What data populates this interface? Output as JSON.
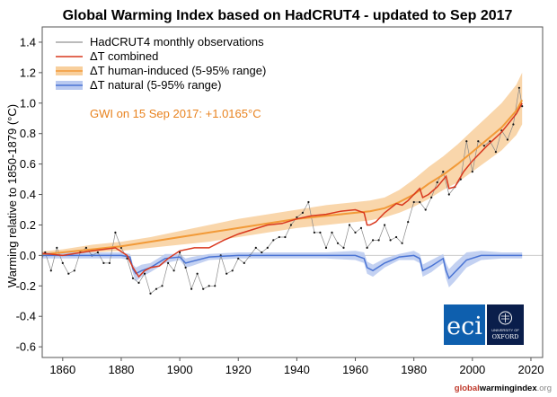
{
  "chart_data": {
    "type": "line",
    "title": "Global Warming Index based on HadCRUT4 - updated to Sep 2017",
    "xlabel": "",
    "ylabel": "Warming relative to 1850-1879 (°C)",
    "xlim": [
      1853,
      2024
    ],
    "ylim": [
      -0.67,
      1.5
    ],
    "x_ticks": [
      1860,
      1880,
      1900,
      1920,
      1940,
      1960,
      1980,
      2000,
      2020
    ],
    "y_ticks": [
      -0.6,
      -0.4,
      -0.2,
      0.0,
      0.2,
      0.4,
      0.6,
      0.8,
      1.0,
      1.2,
      1.4
    ],
    "y_tick_labels": [
      "-0.6",
      "-0.4",
      "-0.2",
      "0.0",
      "0.2",
      "0.4",
      "0.6",
      "0.8",
      "1.0",
      "1.2",
      "1.4"
    ],
    "grid": false,
    "legend_position": "top-left",
    "annotation": "GWI on 15 Sep 2017: +1.0165°C",
    "colors": {
      "observations": "#111111",
      "combined": "#d9381e",
      "human": "#f29a38",
      "human_band": "#f8cf9c",
      "natural": "#4a74d4",
      "natural_band": "#b9c9f0",
      "annotation": "#e8821e"
    },
    "series": [
      {
        "name": "HadCRUT4 monthly observations",
        "style": "grey line with black dots",
        "x": [
          1850,
          1852,
          1854,
          1856,
          1858,
          1860,
          1862,
          1864,
          1866,
          1868,
          1870,
          1872,
          1874,
          1876,
          1878,
          1880,
          1882,
          1884,
          1886,
          1888,
          1890,
          1892,
          1894,
          1896,
          1898,
          1900,
          1902,
          1904,
          1906,
          1908,
          1910,
          1912,
          1914,
          1916,
          1918,
          1920,
          1922,
          1924,
          1926,
          1928,
          1930,
          1932,
          1934,
          1936,
          1938,
          1940,
          1942,
          1944,
          1946,
          1948,
          1950,
          1952,
          1954,
          1956,
          1958,
          1960,
          1962,
          1964,
          1966,
          1968,
          1970,
          1972,
          1974,
          1976,
          1978,
          1980,
          1982,
          1984,
          1986,
          1988,
          1990,
          1992,
          1994,
          1996,
          1998,
          2000,
          2002,
          2004,
          2006,
          2008,
          2010,
          2012,
          2014,
          2016,
          2017
        ],
        "y": [
          0.0,
          -0.05,
          0.02,
          -0.1,
          0.05,
          -0.05,
          -0.12,
          -0.1,
          0.02,
          0.05,
          0.0,
          0.02,
          -0.05,
          -0.05,
          0.15,
          0.05,
          -0.02,
          -0.15,
          -0.18,
          -0.12,
          -0.25,
          -0.22,
          -0.2,
          -0.05,
          -0.1,
          0.02,
          -0.08,
          -0.22,
          -0.12,
          -0.22,
          -0.2,
          -0.2,
          0.0,
          -0.12,
          -0.1,
          -0.02,
          -0.05,
          0.0,
          0.05,
          0.02,
          0.05,
          0.1,
          0.12,
          0.12,
          0.2,
          0.25,
          0.28,
          0.35,
          0.15,
          0.15,
          0.05,
          0.15,
          0.08,
          0.05,
          0.2,
          0.15,
          0.18,
          0.05,
          0.1,
          0.1,
          0.2,
          0.1,
          0.12,
          0.08,
          0.22,
          0.35,
          0.35,
          0.3,
          0.38,
          0.48,
          0.55,
          0.4,
          0.45,
          0.5,
          0.75,
          0.55,
          0.75,
          0.72,
          0.75,
          0.68,
          0.82,
          0.76,
          0.86,
          1.1,
          0.98
        ]
      },
      {
        "name": "ΔT combined",
        "x": [
          1850,
          1860,
          1870,
          1878,
          1882,
          1884,
          1886,
          1888,
          1890,
          1893,
          1896,
          1900,
          1905,
          1910,
          1915,
          1920,
          1925,
          1930,
          1935,
          1940,
          1945,
          1950,
          1955,
          1960,
          1963,
          1964,
          1965,
          1967,
          1970,
          1974,
          1976,
          1978,
          1980,
          1982,
          1983,
          1985,
          1988,
          1991,
          1992,
          1994,
          1997,
          2000,
          2005,
          2010,
          2015,
          2017
        ],
        "y": [
          0.02,
          0.0,
          0.03,
          0.05,
          0.0,
          -0.08,
          -0.14,
          -0.1,
          -0.08,
          -0.07,
          -0.02,
          0.03,
          0.05,
          0.05,
          0.1,
          0.14,
          0.17,
          0.2,
          0.21,
          0.24,
          0.26,
          0.27,
          0.29,
          0.3,
          0.28,
          0.2,
          0.2,
          0.22,
          0.28,
          0.34,
          0.33,
          0.36,
          0.4,
          0.44,
          0.38,
          0.4,
          0.45,
          0.52,
          0.44,
          0.45,
          0.55,
          0.62,
          0.72,
          0.81,
          0.93,
          1.0
        ]
      },
      {
        "name": "ΔT human-induced (5-95% range)",
        "x": [
          1850,
          1860,
          1870,
          1880,
          1890,
          1900,
          1910,
          1920,
          1930,
          1940,
          1950,
          1960,
          1965,
          1970,
          1975,
          1980,
          1985,
          1990,
          1995,
          2000,
          2005,
          2010,
          2015,
          2017
        ],
        "y": [
          0.0,
          0.02,
          0.04,
          0.06,
          0.09,
          0.12,
          0.15,
          0.18,
          0.21,
          0.24,
          0.26,
          0.28,
          0.29,
          0.31,
          0.35,
          0.4,
          0.47,
          0.53,
          0.6,
          0.68,
          0.76,
          0.84,
          0.95,
          1.02
        ],
        "lower": [
          0.0,
          0.0,
          0.02,
          0.03,
          0.05,
          0.07,
          0.09,
          0.12,
          0.15,
          0.18,
          0.2,
          0.22,
          0.23,
          0.25,
          0.28,
          0.32,
          0.37,
          0.43,
          0.48,
          0.55,
          0.62,
          0.69,
          0.79,
          0.86
        ],
        "upper": [
          0.02,
          0.04,
          0.07,
          0.09,
          0.12,
          0.16,
          0.2,
          0.24,
          0.27,
          0.3,
          0.33,
          0.35,
          0.36,
          0.38,
          0.43,
          0.5,
          0.58,
          0.65,
          0.73,
          0.82,
          0.91,
          1.0,
          1.12,
          1.2
        ]
      },
      {
        "name": "ΔT natural (5-95% range)",
        "x": [
          1850,
          1860,
          1870,
          1880,
          1883,
          1884,
          1885,
          1887,
          1890,
          1895,
          1900,
          1902,
          1904,
          1910,
          1920,
          1930,
          1940,
          1950,
          1960,
          1963,
          1964,
          1966,
          1970,
          1975,
          1980,
          1982,
          1983,
          1986,
          1990,
          1991,
          1992,
          1994,
          1998,
          2003,
          2010,
          2017
        ],
        "y": [
          0.0,
          0.0,
          0.0,
          0.0,
          -0.01,
          -0.09,
          -0.12,
          -0.1,
          -0.08,
          -0.02,
          -0.01,
          -0.05,
          -0.04,
          -0.01,
          0.0,
          0.0,
          0.0,
          0.0,
          0.0,
          -0.02,
          -0.08,
          -0.1,
          -0.05,
          -0.01,
          0.0,
          -0.02,
          -0.1,
          -0.07,
          -0.02,
          -0.1,
          -0.15,
          -0.11,
          -0.03,
          0.0,
          0.0,
          0.0
        ],
        "lower": [
          -0.02,
          -0.02,
          -0.02,
          -0.02,
          -0.03,
          -0.12,
          -0.17,
          -0.14,
          -0.11,
          -0.05,
          -0.03,
          -0.08,
          -0.07,
          -0.03,
          -0.02,
          -0.02,
          -0.02,
          -0.02,
          -0.03,
          -0.05,
          -0.12,
          -0.14,
          -0.08,
          -0.03,
          -0.03,
          -0.05,
          -0.14,
          -0.11,
          -0.05,
          -0.15,
          -0.21,
          -0.17,
          -0.08,
          -0.03,
          -0.02,
          -0.02
        ],
        "upper": [
          0.02,
          0.02,
          0.02,
          0.02,
          0.01,
          -0.06,
          -0.08,
          -0.06,
          -0.05,
          0.01,
          0.01,
          -0.02,
          -0.01,
          0.01,
          0.02,
          0.02,
          0.02,
          0.02,
          0.03,
          0.02,
          -0.04,
          -0.06,
          -0.02,
          0.01,
          0.03,
          0.01,
          -0.06,
          -0.03,
          0.01,
          -0.05,
          -0.09,
          -0.05,
          0.02,
          0.03,
          0.02,
          0.02
        ]
      }
    ]
  },
  "footer": {
    "part1": "global",
    "part2": "warmingindex",
    "part3": ".org"
  },
  "logos": {
    "eci": "eci",
    "oxford_line1": "UNIVERSITY OF",
    "oxford_line2": "OXFORD"
  }
}
